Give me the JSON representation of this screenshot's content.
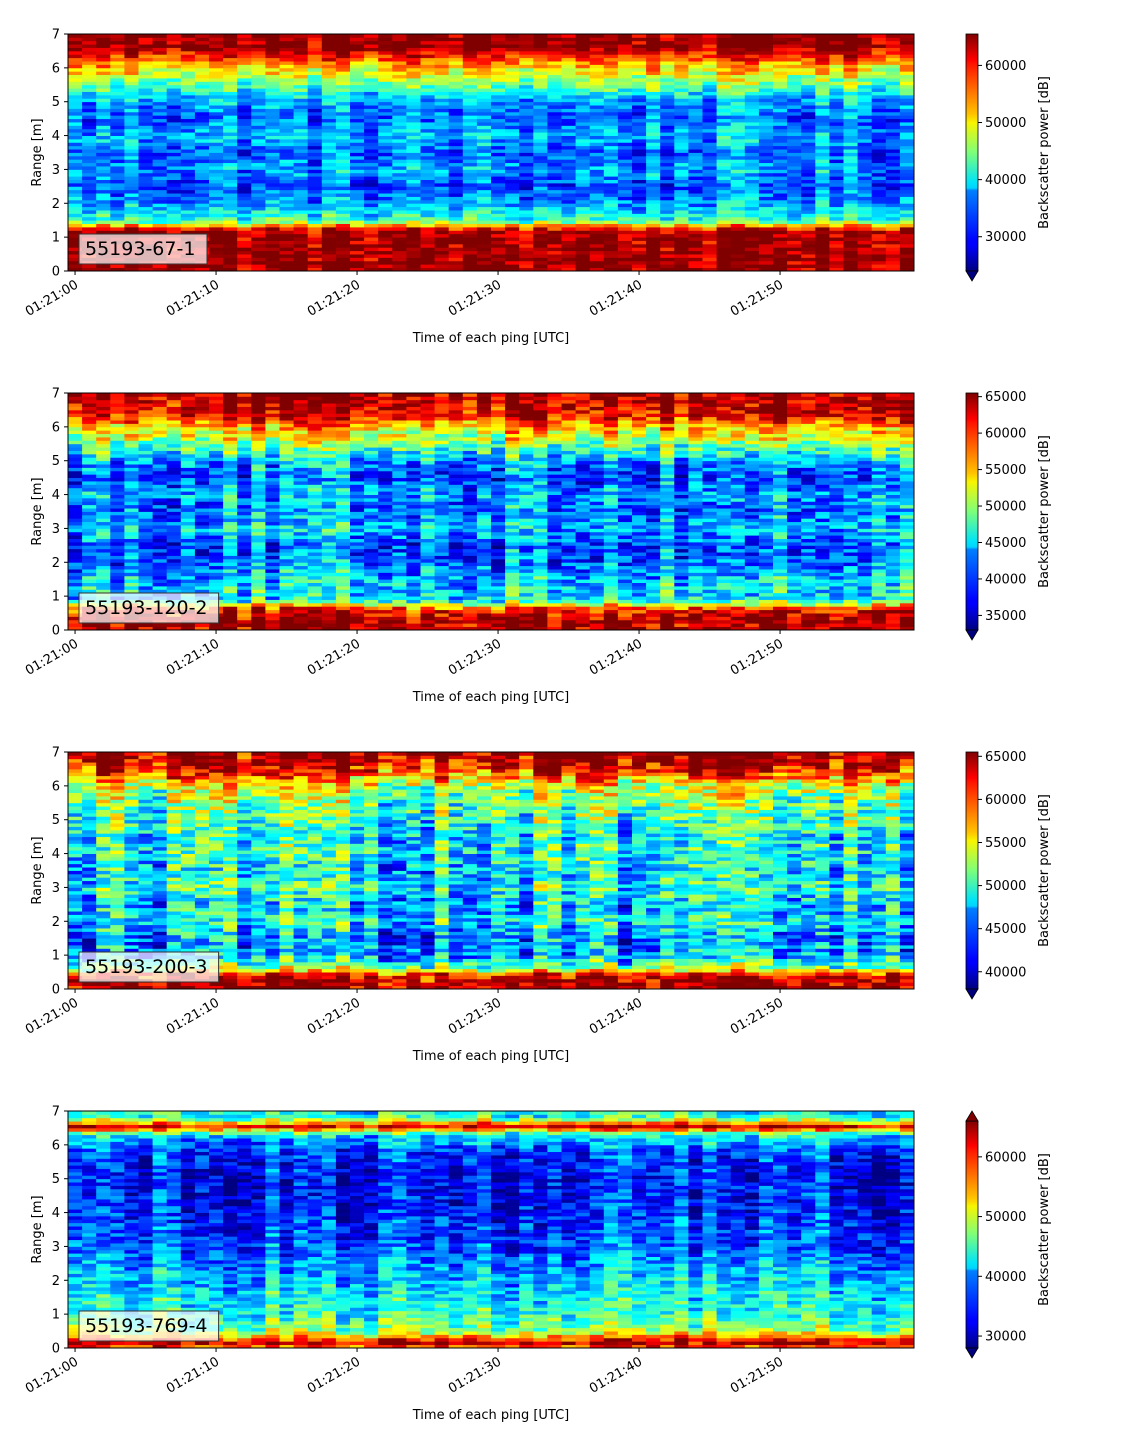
{
  "chart_data": [
    {
      "type": "heatmap",
      "title": "",
      "label": "55193-67-1",
      "xlabel": "Time of each ping [UTC]",
      "ylabel": "Range [m]",
      "colorbar_label": "Backscatter power [dB]",
      "x_ticks": [
        "01:21:00",
        "01:21:10",
        "01:21:20",
        "01:21:30",
        "01:21:40",
        "01:21:50"
      ],
      "y_ticks": [
        0,
        1,
        2,
        3,
        4,
        5,
        6,
        7
      ],
      "ylim": [
        0,
        7
      ],
      "xlim_seconds": [
        -0.5,
        59.5
      ],
      "colorbar_ticks": [
        30000,
        40000,
        50000,
        60000
      ],
      "clim": [
        24000,
        65500
      ],
      "extend": "min",
      "colormap": "jet",
      "n_pings": 60,
      "n_range_bins": 70,
      "grid": false,
      "profile": {
        "range_m": [
          0.0,
          0.25,
          1.2,
          1.5,
          2.0,
          2.5,
          3.0,
          3.5,
          4.0,
          4.5,
          5.0,
          5.5,
          6.0,
          6.3,
          6.6,
          7.0
        ],
        "power": [
          65000,
          65000,
          64000,
          42000,
          36000,
          32000,
          36000,
          33000,
          37000,
          33000,
          36000,
          44000,
          52000,
          58000,
          65000,
          65000
        ]
      }
    },
    {
      "type": "heatmap",
      "title": "",
      "label": "55193-120-2",
      "xlabel": "Time of each ping [UTC]",
      "ylabel": "Range [m]",
      "colorbar_label": "Backscatter power [dB]",
      "x_ticks": [
        "01:21:00",
        "01:21:10",
        "01:21:20",
        "01:21:30",
        "01:21:40",
        "01:21:50"
      ],
      "y_ticks": [
        0,
        1,
        2,
        3,
        4,
        5,
        6,
        7
      ],
      "ylim": [
        0,
        7
      ],
      "xlim_seconds": [
        -0.5,
        59.5
      ],
      "colorbar_ticks": [
        35000,
        40000,
        45000,
        50000,
        55000,
        60000,
        65000
      ],
      "clim": [
        33000,
        65500
      ],
      "extend": "min",
      "colormap": "jet",
      "n_pings": 60,
      "n_range_bins": 70,
      "grid": false,
      "profile": {
        "range_m": [
          0.0,
          0.3,
          0.6,
          0.9,
          1.5,
          2.0,
          2.5,
          3.0,
          3.5,
          4.0,
          4.5,
          5.0,
          5.5,
          6.0,
          6.4,
          7.0
        ],
        "power": [
          65000,
          65000,
          62000,
          45000,
          44000,
          41000,
          40000,
          44000,
          41000,
          43000,
          40000,
          43000,
          50000,
          56000,
          63000,
          65000
        ]
      }
    },
    {
      "type": "heatmap",
      "title": "",
      "label": "55193-200-3",
      "xlabel": "Time of each ping [UTC]",
      "ylabel": "Range [m]",
      "colorbar_label": "Backscatter power [dB]",
      "x_ticks": [
        "01:21:00",
        "01:21:10",
        "01:21:20",
        "01:21:30",
        "01:21:40",
        "01:21:50"
      ],
      "y_ticks": [
        0,
        1,
        2,
        3,
        4,
        5,
        6,
        7
      ],
      "ylim": [
        0,
        7
      ],
      "xlim_seconds": [
        -0.5,
        59.5
      ],
      "colorbar_ticks": [
        40000,
        45000,
        50000,
        55000,
        60000,
        65000
      ],
      "clim": [
        38000,
        65500
      ],
      "extend": "min",
      "colormap": "jet",
      "n_pings": 60,
      "n_range_bins": 70,
      "grid": false,
      "profile": {
        "range_m": [
          0.0,
          0.4,
          0.6,
          1.0,
          1.5,
          2.0,
          2.5,
          3.0,
          3.5,
          4.0,
          4.5,
          5.0,
          5.5,
          6.0,
          6.5,
          7.0
        ],
        "power": [
          65000,
          63000,
          52000,
          46000,
          45000,
          48000,
          46000,
          49000,
          47000,
          49000,
          48000,
          50000,
          51000,
          54000,
          62000,
          65000
        ]
      }
    },
    {
      "type": "heatmap",
      "title": "",
      "label": "55193-769-4",
      "xlabel": "Time of each ping [UTC]",
      "ylabel": "Range [m]",
      "colorbar_label": "Backscatter power [dB]",
      "x_ticks": [
        "01:21:00",
        "01:21:10",
        "01:21:20",
        "01:21:30",
        "01:21:40",
        "01:21:50"
      ],
      "y_ticks": [
        0,
        1,
        2,
        3,
        4,
        5,
        6,
        7
      ],
      "ylim": [
        0,
        7
      ],
      "xlim_seconds": [
        -0.5,
        59.5
      ],
      "colorbar_ticks": [
        30000,
        40000,
        50000,
        60000
      ],
      "clim": [
        28000,
        66000
      ],
      "extend": "both",
      "colormap": "jet",
      "n_pings": 60,
      "n_range_bins": 70,
      "grid": false,
      "profile": {
        "range_m": [
          0.0,
          0.1,
          0.25,
          0.5,
          1.0,
          1.5,
          2.0,
          3.0,
          4.0,
          5.0,
          5.8,
          6.3,
          6.55,
          6.8,
          7.0
        ],
        "power": [
          52000,
          66000,
          60000,
          48000,
          44000,
          42000,
          40000,
          36000,
          34000,
          33000,
          35000,
          42000,
          63000,
          45000,
          42000
        ]
      }
    }
  ]
}
